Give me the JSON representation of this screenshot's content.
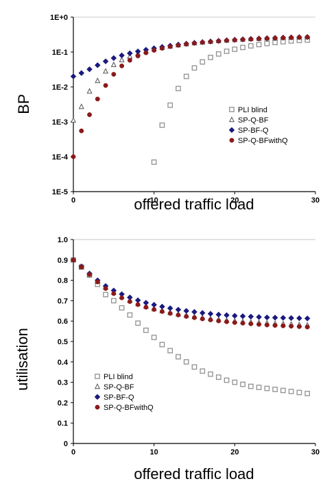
{
  "chart_data": [
    {
      "type": "scatter",
      "ylabel": "BP",
      "xlabel": "offered traffic load",
      "yscale": "log",
      "ylim": [
        1e-05,
        1
      ],
      "xlim": [
        0,
        30
      ],
      "xticks": [
        "0",
        "10",
        "20",
        "30"
      ],
      "yticks": [
        "1E-5",
        "1E-4",
        "1E-3",
        "1E-2",
        "1E-1",
        "1E+0"
      ],
      "legend_position": "center-right",
      "series": [
        {
          "name": "PLI blind",
          "marker": "square-open",
          "color": "#909090",
          "x": [
            10,
            11,
            12,
            13,
            14,
            15,
            16,
            17,
            18,
            19,
            20,
            21,
            22,
            23,
            24,
            25,
            26,
            27,
            28,
            29
          ],
          "y": [
            7e-05,
            0.0008,
            0.003,
            0.009,
            0.02,
            0.035,
            0.052,
            0.07,
            0.088,
            0.105,
            0.12,
            0.135,
            0.15,
            0.163,
            0.175,
            0.187,
            0.197,
            0.207,
            0.215,
            0.22
          ]
        },
        {
          "name": "SP-Q-BF",
          "marker": "triangle-open",
          "color": "#505050",
          "x": [
            0,
            1,
            2,
            3,
            4,
            5,
            6,
            7,
            8,
            9,
            10,
            11,
            12,
            13,
            14,
            15,
            16,
            17,
            18,
            19,
            20,
            21,
            22,
            23,
            24,
            25,
            26,
            27,
            28,
            29
          ],
          "y": [
            0.0011,
            0.0027,
            0.0075,
            0.015,
            0.028,
            0.043,
            0.059,
            0.075,
            0.09,
            0.105,
            0.12,
            0.133,
            0.146,
            0.158,
            0.17,
            0.18,
            0.19,
            0.2,
            0.208,
            0.216,
            0.223,
            0.23,
            0.236,
            0.242,
            0.247,
            0.252,
            0.257,
            0.261,
            0.265,
            0.268
          ]
        },
        {
          "name": "SP-BF-Q",
          "marker": "diamond",
          "color": "#1a1a7e",
          "x": [
            0,
            1,
            2,
            3,
            4,
            5,
            6,
            7,
            8,
            9,
            10,
            11,
            12,
            13,
            14,
            15,
            16,
            17,
            18,
            19,
            20,
            21,
            22,
            23,
            24,
            25,
            26,
            27,
            28,
            29
          ],
          "y": [
            0.02,
            0.025,
            0.032,
            0.042,
            0.054,
            0.067,
            0.08,
            0.092,
            0.104,
            0.116,
            0.128,
            0.14,
            0.152,
            0.163,
            0.173,
            0.183,
            0.192,
            0.2,
            0.208,
            0.216,
            0.223,
            0.23,
            0.236,
            0.242,
            0.247,
            0.252,
            0.257,
            0.261,
            0.265,
            0.268
          ]
        },
        {
          "name": "SP-Q-BFwithQ",
          "marker": "circle",
          "color": "#8b1a1a",
          "x": [
            0,
            1,
            2,
            3,
            4,
            5,
            6,
            7,
            8,
            9,
            10,
            11,
            12,
            13,
            14,
            15,
            16,
            17,
            18,
            19,
            20,
            21,
            22,
            23,
            24,
            25,
            26,
            27,
            28,
            29
          ],
          "y": [
            0.0001,
            0.00055,
            0.0016,
            0.0045,
            0.011,
            0.023,
            0.04,
            0.058,
            0.077,
            0.095,
            0.112,
            0.128,
            0.143,
            0.156,
            0.168,
            0.179,
            0.189,
            0.198,
            0.207,
            0.215,
            0.222,
            0.229,
            0.235,
            0.241,
            0.246,
            0.251,
            0.256,
            0.26,
            0.264,
            0.267
          ]
        }
      ]
    },
    {
      "type": "scatter",
      "ylabel": "utilisation",
      "xlabel": "offered traffic load",
      "ylim": [
        0,
        1
      ],
      "xlim": [
        0,
        30
      ],
      "xticks": [
        "0",
        "10",
        "20",
        "30"
      ],
      "yticks": [
        "0",
        "0.1",
        "0.2",
        "0.3",
        "0.4",
        "0.5",
        "0.6",
        "0.7",
        "0.8",
        "0.9",
        "1.0"
      ],
      "legend_position": "center-left",
      "series": [
        {
          "name": "PLI blind",
          "marker": "square-open",
          "color": "#909090",
          "x": [
            0,
            1,
            2,
            3,
            4,
            5,
            6,
            7,
            8,
            9,
            10,
            11,
            12,
            13,
            14,
            15,
            16,
            17,
            18,
            19,
            20,
            21,
            22,
            23,
            24,
            25,
            26,
            27,
            28,
            29
          ],
          "y": [
            0.9,
            0.865,
            0.825,
            0.78,
            0.73,
            0.7,
            0.665,
            0.63,
            0.59,
            0.555,
            0.52,
            0.485,
            0.455,
            0.425,
            0.4,
            0.375,
            0.355,
            0.34,
            0.325,
            0.31,
            0.3,
            0.29,
            0.28,
            0.275,
            0.27,
            0.265,
            0.26,
            0.255,
            0.25,
            0.245
          ]
        },
        {
          "name": "SP-Q-BF",
          "marker": "triangle-open",
          "color": "#505050",
          "x": [
            0,
            1,
            2,
            3,
            4,
            5,
            6,
            7,
            8,
            9,
            10,
            11,
            12,
            13,
            14,
            15,
            16,
            17,
            18,
            19,
            20,
            21,
            22,
            23,
            24,
            25,
            26,
            27,
            28,
            29
          ],
          "y": [
            0.9,
            0.865,
            0.83,
            0.795,
            0.765,
            0.74,
            0.72,
            0.7,
            0.685,
            0.672,
            0.66,
            0.65,
            0.641,
            0.634,
            0.627,
            0.621,
            0.616,
            0.611,
            0.607,
            0.603,
            0.6,
            0.597,
            0.594,
            0.592,
            0.59,
            0.588,
            0.586,
            0.584,
            0.582,
            0.58
          ]
        },
        {
          "name": "SP-BF-Q",
          "marker": "diamond",
          "color": "#1a1a7e",
          "x": [
            0,
            1,
            2,
            3,
            4,
            5,
            6,
            7,
            8,
            9,
            10,
            11,
            12,
            13,
            14,
            15,
            16,
            17,
            18,
            19,
            20,
            21,
            22,
            23,
            24,
            25,
            26,
            27,
            28,
            29
          ],
          "y": [
            0.9,
            0.868,
            0.833,
            0.8,
            0.772,
            0.75,
            0.732,
            0.716,
            0.702,
            0.69,
            0.68,
            0.671,
            0.663,
            0.656,
            0.65,
            0.645,
            0.64,
            0.636,
            0.632,
            0.629,
            0.626,
            0.624,
            0.622,
            0.62,
            0.618,
            0.617,
            0.616,
            0.615,
            0.614,
            0.613
          ]
        },
        {
          "name": "SP-Q-BFwithQ",
          "marker": "circle",
          "color": "#8b1a1a",
          "x": [
            0,
            1,
            2,
            3,
            4,
            5,
            6,
            7,
            8,
            9,
            10,
            11,
            12,
            13,
            14,
            15,
            16,
            17,
            18,
            19,
            20,
            21,
            22,
            23,
            24,
            25,
            26,
            27,
            28,
            29
          ],
          "y": [
            0.9,
            0.865,
            0.828,
            0.792,
            0.76,
            0.735,
            0.714,
            0.696,
            0.681,
            0.668,
            0.657,
            0.647,
            0.638,
            0.63,
            0.623,
            0.617,
            0.611,
            0.606,
            0.601,
            0.597,
            0.593,
            0.59,
            0.587,
            0.584,
            0.581,
            0.579,
            0.577,
            0.575,
            0.573,
            0.571
          ]
        }
      ]
    }
  ]
}
